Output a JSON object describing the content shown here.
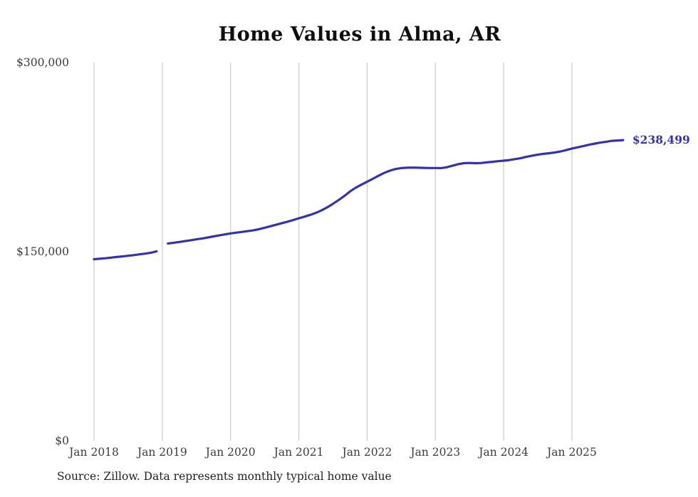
{
  "chart_data": {
    "type": "line",
    "title": "Home Values in Alma, AR",
    "series_name": "Monthly typical home value",
    "x": [
      "2018-01",
      "2018-02",
      "2018-03",
      "2018-04",
      "2018-05",
      "2018-06",
      "2018-07",
      "2018-08",
      "2018-09",
      "2018-10",
      "2018-11",
      "2018-12",
      "2019-01",
      "2019-02",
      "2019-03",
      "2019-04",
      "2019-05",
      "2019-06",
      "2019-07",
      "2019-08",
      "2019-09",
      "2019-10",
      "2019-11",
      "2019-12",
      "2020-01",
      "2020-02",
      "2020-03",
      "2020-04",
      "2020-05",
      "2020-06",
      "2020-07",
      "2020-08",
      "2020-09",
      "2020-10",
      "2020-11",
      "2020-12",
      "2021-01",
      "2021-02",
      "2021-03",
      "2021-04",
      "2021-05",
      "2021-06",
      "2021-07",
      "2021-08",
      "2021-09",
      "2021-10",
      "2021-11",
      "2021-12",
      "2022-01",
      "2022-02",
      "2022-03",
      "2022-04",
      "2022-05",
      "2022-06",
      "2022-07",
      "2022-08",
      "2022-09",
      "2022-10",
      "2022-11",
      "2022-12",
      "2023-01",
      "2023-02",
      "2023-03",
      "2023-04",
      "2023-05",
      "2023-06",
      "2023-07",
      "2023-08",
      "2023-09",
      "2023-10",
      "2023-11",
      "2023-12",
      "2024-01",
      "2024-02",
      "2024-03",
      "2024-04",
      "2024-05",
      "2024-06",
      "2024-07",
      "2024-08",
      "2024-09",
      "2024-10",
      "2024-11",
      "2024-12",
      "2025-01",
      "2025-02",
      "2025-03",
      "2025-04",
      "2025-05",
      "2025-06",
      "2025-07",
      "2025-08",
      "2025-09",
      "2025-10"
    ],
    "values": [
      144000,
      144400,
      144800,
      145300,
      145800,
      146300,
      146800,
      147300,
      147900,
      148500,
      149200,
      150300,
      null,
      156500,
      157100,
      157700,
      158400,
      159100,
      159800,
      160500,
      161300,
      162100,
      162900,
      163700,
      164500,
      165100,
      165700,
      166300,
      167000,
      167900,
      169000,
      170200,
      171400,
      172600,
      173800,
      175100,
      176500,
      177800,
      179200,
      180800,
      182800,
      185200,
      188000,
      191000,
      194200,
      197800,
      200800,
      203200,
      205500,
      207800,
      210200,
      212500,
      214300,
      215600,
      216300,
      216600,
      216700,
      216600,
      216500,
      216400,
      216400,
      216300,
      217000,
      218200,
      219400,
      220200,
      220400,
      220200,
      220300,
      220800,
      221300,
      221800,
      222200,
      222700,
      223400,
      224200,
      225200,
      226200,
      227000,
      227600,
      228100,
      228700,
      229500,
      230600,
      231800,
      232800,
      233800,
      234800,
      235700,
      236500,
      237200,
      237900,
      238200,
      238499
    ],
    "x_ticks": [
      {
        "label": "Jan 2018",
        "month": 0
      },
      {
        "label": "Jan 2019",
        "month": 12
      },
      {
        "label": "Jan 2020",
        "month": 24
      },
      {
        "label": "Jan 2021",
        "month": 36
      },
      {
        "label": "Jan 2022",
        "month": 48
      },
      {
        "label": "Jan 2023",
        "month": 60
      },
      {
        "label": "Jan 2024",
        "month": 72
      },
      {
        "label": "Jan 2025",
        "month": 84
      }
    ],
    "y_ticks": [
      {
        "label": "$0",
        "value": 0
      },
      {
        "label": "$150,000",
        "value": 150000
      },
      {
        "label": "$300,000",
        "value": 300000
      }
    ],
    "ylim": [
      0,
      300000
    ],
    "grid": "vertical-only",
    "legend": "none",
    "end_label": "$238,499",
    "line_color": "#3432b0",
    "grid_color": "#cccccc",
    "tick_label_color": "#3c3c3c"
  },
  "footer": {
    "source": "Source: Zillow. Data represents monthly typical home value"
  }
}
